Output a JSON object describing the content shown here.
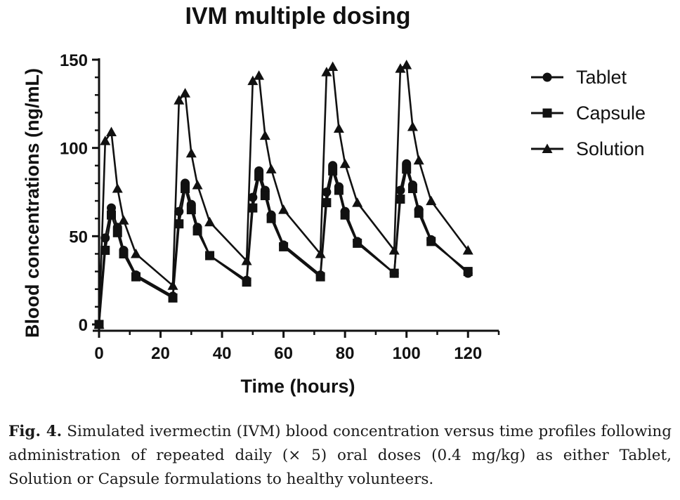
{
  "chart_data": {
    "type": "line",
    "title": "IVM multiple dosing",
    "xlabel": "Time (hours)",
    "ylabel": "Blood concentrations (ng/mL)",
    "xlim": [
      0,
      130
    ],
    "ylim": [
      0,
      150
    ],
    "xticks": [
      0,
      20,
      40,
      60,
      80,
      100,
      120
    ],
    "yticks": [
      0,
      50,
      100,
      150
    ],
    "grid": false,
    "legend_position": "top-right",
    "series": [
      {
        "name": "Tablet",
        "marker": "circle",
        "points": [
          [
            0,
            0
          ],
          [
            2,
            49
          ],
          [
            4,
            66
          ],
          [
            6,
            55
          ],
          [
            8,
            42
          ],
          [
            12,
            28
          ],
          [
            24,
            16
          ],
          [
            26,
            64
          ],
          [
            28,
            80
          ],
          [
            30,
            68
          ],
          [
            32,
            55
          ],
          [
            36,
            39
          ],
          [
            48,
            25
          ],
          [
            50,
            72
          ],
          [
            52,
            87
          ],
          [
            54,
            76
          ],
          [
            56,
            62
          ],
          [
            60,
            45
          ],
          [
            72,
            28
          ],
          [
            74,
            75
          ],
          [
            76,
            90
          ],
          [
            78,
            78
          ],
          [
            80,
            64
          ],
          [
            84,
            47
          ],
          [
            96,
            29
          ],
          [
            98,
            76
          ],
          [
            100,
            91
          ],
          [
            102,
            79
          ],
          [
            104,
            65
          ],
          [
            108,
            48
          ],
          [
            120,
            29
          ]
        ]
      },
      {
        "name": "Capsule",
        "marker": "square",
        "points": [
          [
            0,
            0
          ],
          [
            2,
            42
          ],
          [
            4,
            62
          ],
          [
            6,
            52
          ],
          [
            8,
            40
          ],
          [
            12,
            27
          ],
          [
            24,
            15
          ],
          [
            26,
            57
          ],
          [
            28,
            77
          ],
          [
            30,
            65
          ],
          [
            32,
            53
          ],
          [
            36,
            39
          ],
          [
            48,
            24
          ],
          [
            50,
            66
          ],
          [
            52,
            84
          ],
          [
            54,
            73
          ],
          [
            56,
            60
          ],
          [
            60,
            44
          ],
          [
            72,
            27
          ],
          [
            74,
            69
          ],
          [
            76,
            87
          ],
          [
            78,
            76
          ],
          [
            80,
            62
          ],
          [
            84,
            46
          ],
          [
            96,
            29
          ],
          [
            98,
            71
          ],
          [
            100,
            88
          ],
          [
            102,
            77
          ],
          [
            104,
            63
          ],
          [
            108,
            47
          ],
          [
            120,
            30
          ]
        ]
      },
      {
        "name": "Solution",
        "marker": "triangle",
        "points": [
          [
            0,
            0
          ],
          [
            2,
            104
          ],
          [
            4,
            109
          ],
          [
            6,
            77
          ],
          [
            8,
            59
          ],
          [
            12,
            40
          ],
          [
            24,
            22
          ],
          [
            26,
            127
          ],
          [
            28,
            131
          ],
          [
            30,
            97
          ],
          [
            32,
            79
          ],
          [
            36,
            58
          ],
          [
            48,
            36
          ],
          [
            50,
            138
          ],
          [
            52,
            141
          ],
          [
            54,
            107
          ],
          [
            56,
            88
          ],
          [
            60,
            65
          ],
          [
            72,
            40
          ],
          [
            74,
            143
          ],
          [
            76,
            146
          ],
          [
            78,
            111
          ],
          [
            80,
            91
          ],
          [
            84,
            69
          ],
          [
            96,
            42
          ],
          [
            98,
            145
          ],
          [
            100,
            147
          ],
          [
            102,
            112
          ],
          [
            104,
            93
          ],
          [
            108,
            70
          ],
          [
            120,
            42
          ]
        ]
      }
    ]
  },
  "caption": {
    "label": "Fig. 4.",
    "text": "Simulated ivermectin (IVM) blood concentration versus time profiles following administration of repeated daily (× 5) oral doses (0.4 mg/kg) as either Tablet, Solution or Capsule formulations to healthy volunteers."
  }
}
